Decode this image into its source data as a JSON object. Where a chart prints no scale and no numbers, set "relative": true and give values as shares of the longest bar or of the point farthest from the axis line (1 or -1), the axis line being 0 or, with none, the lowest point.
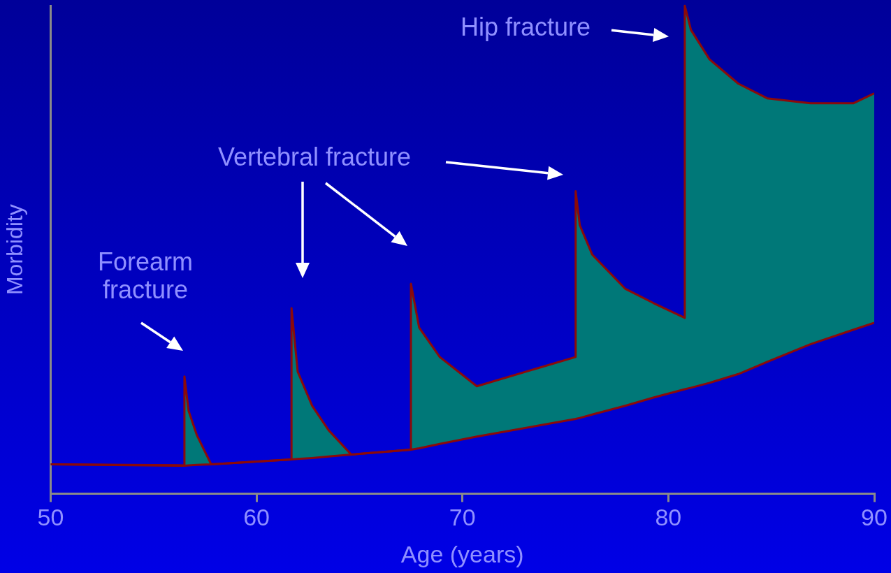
{
  "chart_data": {
    "type": "area",
    "relative": true,
    "xlabel": "Age (years)",
    "ylabel": "Morbidity",
    "xlim": [
      50,
      90
    ],
    "xticks": [
      50,
      60,
      70,
      80,
      90
    ],
    "grid": false,
    "legend": false,
    "marker": "none",
    "line_style": "solid",
    "annotations": [
      "Forearm fracture",
      "Vertebral fracture",
      "Hip fracture"
    ],
    "series": [
      {
        "type": "line",
        "color": "#8b0a0a",
        "x": [
          50,
          56.5,
          56.7,
          57.1,
          57.8,
          61.7,
          62.0,
          62.7,
          63.5,
          64.6,
          67.5,
          67.9,
          68.9,
          70.7,
          75.5,
          75.7,
          76.3,
          77.9,
          79.3,
          80.8,
          81.1,
          82.0,
          83.4,
          84.8,
          86.9,
          89.0,
          90
        ],
        "values": [
          0.06,
          0.057,
          0.058,
          0.059,
          0.06,
          0.07,
          0.071,
          0.073,
          0.076,
          0.08,
          0.09,
          0.093,
          0.102,
          0.117,
          0.153,
          0.155,
          0.162,
          0.18,
          0.197,
          0.214,
          0.217,
          0.227,
          0.245,
          0.27,
          0.306,
          0.336,
          0.35
        ]
      },
      {
        "type": "area",
        "color": "#007878",
        "x": [
          50,
          56.5,
          56.5,
          56.7,
          57.1,
          57.8,
          61.7,
          61.7,
          62.0,
          62.7,
          63.5,
          64.6,
          67.5,
          67.5,
          67.9,
          68.9,
          70.7,
          75.5,
          75.5,
          75.7,
          76.3,
          77.9,
          79.3,
          80.8,
          80.8,
          81.1,
          82.0,
          83.4,
          84.8,
          86.9,
          89.0,
          90
        ],
        "values": [
          0.06,
          0.058,
          0.24,
          0.17,
          0.12,
          0.06,
          0.07,
          0.38,
          0.25,
          0.18,
          0.13,
          0.08,
          0.09,
          0.43,
          0.34,
          0.28,
          0.22,
          0.28,
          0.62,
          0.55,
          0.49,
          0.42,
          0.39,
          0.36,
          1,
          0.95,
          0.89,
          0.84,
          0.81,
          0.8,
          0.8,
          0.82
        ]
      }
    ]
  }
}
